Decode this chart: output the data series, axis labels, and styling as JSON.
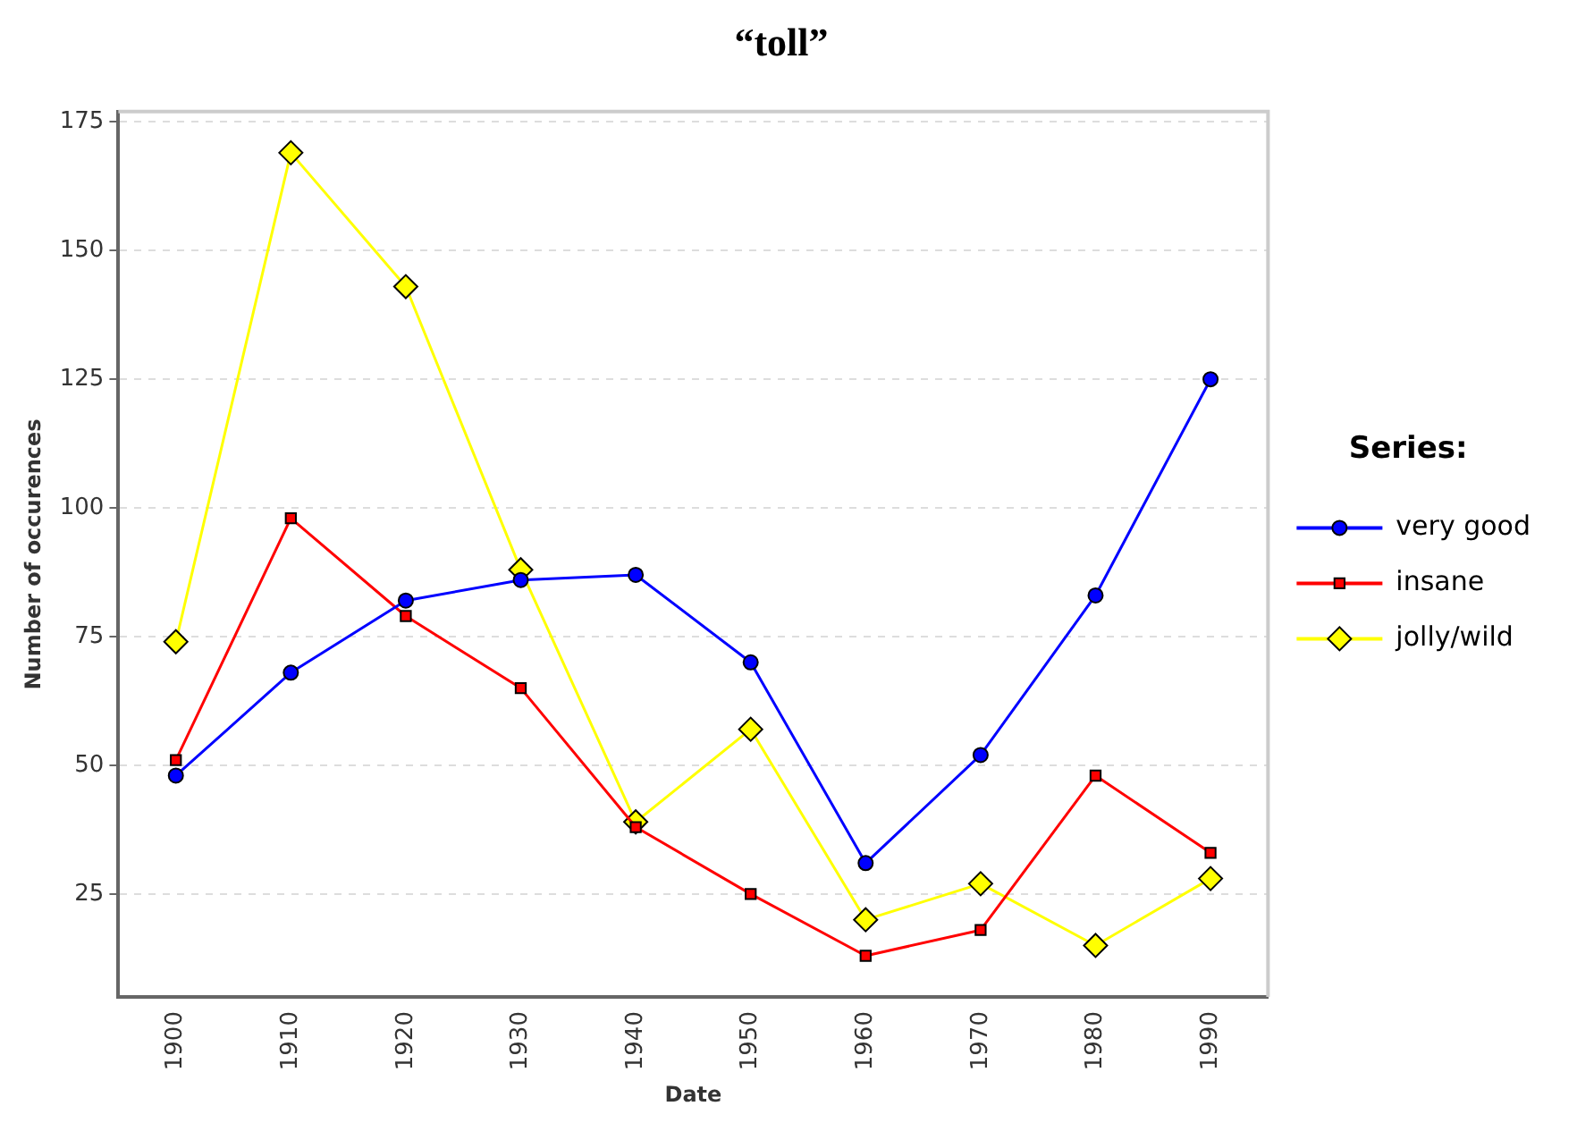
{
  "chart_data": {
    "type": "line",
    "title": "“toll”",
    "xlabel": "Date",
    "ylabel": "Number of occurences",
    "legend_title": "Series:",
    "legend": "right",
    "grid": "y",
    "categories": [
      "1900",
      "1910",
      "1920",
      "1930",
      "1940",
      "1950",
      "1960",
      "1970",
      "1980",
      "1990"
    ],
    "ylim": [
      5,
      177
    ],
    "yticks": [
      25,
      50,
      75,
      100,
      125,
      150,
      175
    ],
    "line_style": "solid",
    "series": [
      {
        "name": "very good",
        "color": "#0000ff",
        "marker": "circle",
        "values": [
          48,
          68,
          82,
          86,
          87,
          70,
          31,
          52,
          83,
          125
        ]
      },
      {
        "name": "insane",
        "color": "#ff0000",
        "marker": "square",
        "values": [
          51,
          98,
          79,
          65,
          38,
          25,
          13,
          18,
          48,
          33
        ]
      },
      {
        "name": "jolly/wild",
        "color": "#ffff00",
        "marker": "diamond",
        "values": [
          74,
          169,
          143,
          88,
          39,
          57,
          20,
          27,
          15,
          28
        ]
      }
    ]
  }
}
